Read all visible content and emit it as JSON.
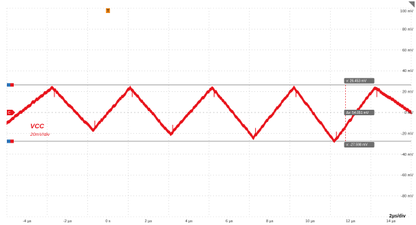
{
  "chart_data": {
    "type": "line",
    "title": "",
    "xlabel": "",
    "ylabel": "",
    "xlim": [
      -5,
      15
    ],
    "ylim": [
      -100,
      100
    ],
    "x_ticks": [
      "-4 µs",
      "-2 µs",
      "0 s",
      "2 µs",
      "4 µs",
      "6 µs",
      "8 µs",
      "10 µs",
      "12 µs",
      "14 µs"
    ],
    "x_tick_values": [
      -4,
      -2,
      0,
      2,
      4,
      6,
      8,
      10,
      12,
      14
    ],
    "y_ticks": [
      "100 mV",
      "80 mV",
      "60 mV",
      "40 mV",
      "20 mV",
      "0 mV",
      "-20 mV",
      "-40 mV",
      "-60 mV",
      "-80 mV"
    ],
    "y_tick_values": [
      100,
      80,
      60,
      40,
      20,
      0,
      -20,
      -40,
      -60,
      -80
    ],
    "series": [
      {
        "name": "VCC",
        "x": [
          -5,
          -2.75,
          -0.75,
          1.1,
          3.1,
          5.15,
          7.2,
          9.2,
          11.2,
          13.2,
          15
        ],
        "y": [
          -10,
          24,
          -17,
          24,
          -21,
          24,
          -24,
          24,
          -27.5,
          24,
          0
        ]
      }
    ],
    "channel_label": "VCC",
    "vertical_scale": "20mV/div",
    "time_scale": "2µs/div",
    "cursors": {
      "y1_value": 26.453,
      "y2_value": -27.598,
      "y1_label": "v: 26.453 mV",
      "y2_label": "v: -27.598 mV",
      "delta_label": "Δv: 54.051 mV",
      "x_value": 11.75
    },
    "trigger_marker": "T",
    "channel_marker": "C",
    "colors": {
      "trace": "#e8141c",
      "cursor_box": "#6e6e6e",
      "cursor_marker": "#2a6fb5",
      "trigger_marker": "#f08a1c",
      "grid": "#c4c4c4"
    }
  }
}
